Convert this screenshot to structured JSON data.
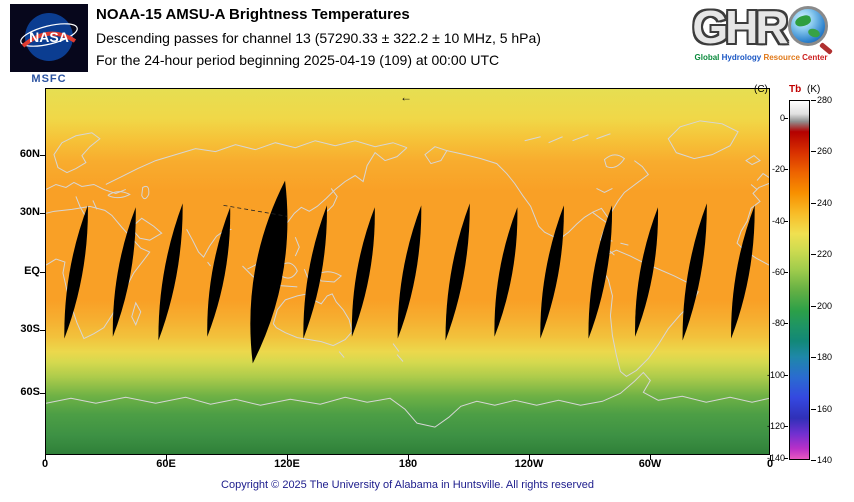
{
  "header": {
    "nasa": {
      "wordmark": "NASA",
      "center": "MSFC"
    },
    "title": "NOAA-15 AMSU-A Brightness Temperatures",
    "subtitle": "Descending passes for channel 13 (57290.33 ± 322.2 ± 10 MHz, 5 hPa)",
    "period": "For the 24-hour period beginning 2025-04-19 (109) at 00:00 UTC",
    "ghrc": {
      "letters": "GHR",
      "globe_letter": "C",
      "tagline_words": [
        {
          "text": "Global",
          "color": "#0a8a3c"
        },
        {
          "text": "Hydrology",
          "color": "#1a56c4"
        },
        {
          "text": "Resource",
          "color": "#e07818"
        },
        {
          "text": "Center",
          "color": "#cc2020"
        }
      ]
    }
  },
  "map": {
    "y_ticks": [
      "60N",
      "30N",
      "EQ",
      "30S",
      "60S"
    ],
    "x_ticks": [
      "0",
      "60E",
      "120E",
      "180",
      "120W",
      "60W",
      "0"
    ],
    "start_arrow": "←"
  },
  "colorbar": {
    "unit_left": "(C)",
    "unit_right_prefix": "Tb",
    "unit_right": "(K)",
    "ticks_k": [
      "280",
      "260",
      "240",
      "220",
      "200",
      "180",
      "160",
      "140"
    ],
    "ticks_c": [
      "0",
      "-20",
      "-40",
      "-60",
      "-80",
      "-100",
      "-120",
      "-140"
    ]
  },
  "footer": "Copyright © 2025 The University of Alabama in Huntsville.  All rights reserved",
  "chart_data": {
    "type": "heatmap",
    "title": "NOAA-15 AMSU-A Brightness Temperatures",
    "subtitle": "Descending passes for channel 13 (57290.33 ± 322.2 ± 10 MHz, 5 hPa)",
    "period": "For the 24-hour period beginning 2025-04-19 (109) at 00:00 UTC",
    "projection": "equirectangular world map, longitudes 0E eastward through 360E",
    "x_axis": {
      "ticks": [
        "0",
        "60E",
        "120E",
        "180",
        "120W",
        "60W",
        "0"
      ],
      "range": [
        0,
        360
      ],
      "unit": "degrees longitude"
    },
    "y_axis": {
      "ticks": [
        "60N",
        "30N",
        "EQ",
        "30S",
        "60S"
      ],
      "range": [
        -90,
        90
      ],
      "unit": "degrees latitude"
    },
    "colorbar": {
      "label": "Tb (K)",
      "secondary_label": "(C)",
      "range_k": [
        140,
        280
      ],
      "ticks_k": [
        280,
        260,
        240,
        220,
        200,
        180,
        160,
        140
      ],
      "ticks_c": [
        0,
        -20,
        -40,
        -60,
        -80,
        -100,
        -120,
        -140
      ],
      "stops": [
        {
          "k": 280,
          "color": "#ffffff"
        },
        {
          "k": 275,
          "color": "#e0e0e0"
        },
        {
          "k": 272,
          "color": "#909090"
        },
        {
          "k": 268,
          "color": "#b40000"
        },
        {
          "k": 260,
          "color": "#d83000"
        },
        {
          "k": 252,
          "color": "#ee6400"
        },
        {
          "k": 244,
          "color": "#f89000"
        },
        {
          "k": 236,
          "color": "#f8bc28"
        },
        {
          "k": 228,
          "color": "#f0e050"
        },
        {
          "k": 222,
          "color": "#d0dc50"
        },
        {
          "k": 214,
          "color": "#a0cc4c"
        },
        {
          "k": 206,
          "color": "#64b044"
        },
        {
          "k": 198,
          "color": "#2ca048"
        },
        {
          "k": 192,
          "color": "#1e9464"
        },
        {
          "k": 186,
          "color": "#128878"
        },
        {
          "k": 180,
          "color": "#1e88a8"
        },
        {
          "k": 172,
          "color": "#2a6cd0"
        },
        {
          "k": 164,
          "color": "#3448e0"
        },
        {
          "k": 156,
          "color": "#3030b8"
        },
        {
          "k": 150,
          "color": "#7030d0"
        },
        {
          "k": 144,
          "color": "#b830c8"
        },
        {
          "k": 140,
          "color": "#e858c0"
        }
      ]
    },
    "latitudinal_mean_tb_k": [
      {
        "lat_deg": 85,
        "tb_k": 231
      },
      {
        "lat_deg": 70,
        "tb_k": 234
      },
      {
        "lat_deg": 55,
        "tb_k": 239
      },
      {
        "lat_deg": 40,
        "tb_k": 243
      },
      {
        "lat_deg": 20,
        "tb_k": 245
      },
      {
        "lat_deg": 0,
        "tb_k": 245
      },
      {
        "lat_deg": -20,
        "tb_k": 243
      },
      {
        "lat_deg": -35,
        "tb_k": 234
      },
      {
        "lat_deg": -45,
        "tb_k": 224
      },
      {
        "lat_deg": -55,
        "tb_k": 214
      },
      {
        "lat_deg": -65,
        "tb_k": 208
      },
      {
        "lat_deg": -80,
        "tb_k": 203
      }
    ],
    "swath_gaps": {
      "description": "Lens-shaped black no-data gaps between successive descending orbit swaths, widest at the equator",
      "count": 15,
      "center_lons_deg_east": [
        15,
        39,
        62,
        86,
        111,
        134,
        158,
        181,
        205,
        229,
        252,
        276,
        299,
        323,
        347
      ],
      "half_width_deg": [
        3.2,
        3.2,
        3.2,
        3.2,
        7,
        3.2,
        3.2,
        3.2,
        3.2,
        3.2,
        3.2,
        3.2,
        3.2,
        3.2,
        3.2
      ],
      "lat_half_extent_deg": [
        35,
        34,
        36,
        34,
        48,
        35,
        34,
        35,
        36,
        34,
        35,
        35,
        34,
        36,
        35
      ],
      "tilt_deg_clockwise": 10
    }
  }
}
